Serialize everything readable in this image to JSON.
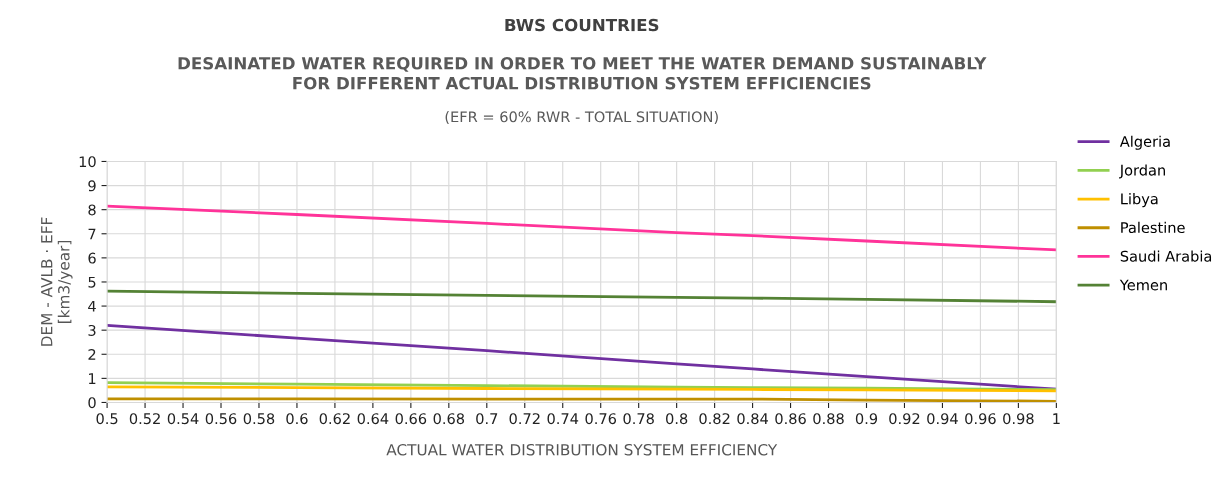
{
  "chart_data": {
    "type": "line",
    "title": "BWS COUNTRIES",
    "subtitle": "DESAINATED WATER REQUIRED IN ORDER TO MEET THE WATER DEMAND SUSTAINABLY\nFOR DIFFERENT ACTUAL DISTRIBUTION SYSTEM EFFICIENCIES",
    "annotations": [
      "(EFR = 60% RWR - TOTAL SITUATION)"
    ],
    "xlabel": "ACTUAL WATER DISTRIBUTION SYSTEM EFFICIENCY",
    "ylabel": "DEM - AVLB · EFF\n[km3/year]",
    "x": [
      0.5,
      0.6,
      0.7,
      0.8,
      0.84,
      0.9,
      1.0
    ],
    "series": [
      {
        "name": "Algeria",
        "color": "#7030a0",
        "values": [
          3.2,
          2.67,
          2.15,
          1.6,
          1.39,
          1.07,
          0.55
        ]
      },
      {
        "name": "Jordan",
        "color": "#92d050",
        "values": [
          0.82,
          0.76,
          0.7,
          0.64,
          0.62,
          0.59,
          0.53
        ]
      },
      {
        "name": "Libya",
        "color": "#ffc000",
        "values": [
          0.65,
          0.62,
          0.58,
          0.55,
          0.54,
          0.52,
          0.48
        ]
      },
      {
        "name": "Palestine",
        "color": "#bf8f00",
        "values": [
          0.15,
          0.15,
          0.14,
          0.14,
          0.14,
          0.1,
          0.05
        ]
      },
      {
        "name": "Saudi Arabia",
        "color": "#ff3399",
        "values": [
          8.15,
          7.8,
          7.43,
          7.05,
          6.92,
          6.7,
          6.33
        ]
      },
      {
        "name": "Yemen",
        "color": "#548235",
        "values": [
          4.62,
          4.53,
          4.44,
          4.36,
          4.33,
          4.28,
          4.18
        ]
      }
    ],
    "xlim": [
      0.5,
      1
    ],
    "xticks": [
      0.5,
      0.52,
      0.54,
      0.56,
      0.58,
      0.6,
      0.62,
      0.64,
      0.66,
      0.68,
      0.7,
      0.72,
      0.74,
      0.76,
      0.78,
      0.8,
      0.82,
      0.84,
      0.86,
      0.88,
      0.9,
      0.92,
      0.94,
      0.96,
      0.98,
      1
    ],
    "ylim": [
      0,
      10
    ],
    "yticks": [
      0,
      1,
      2,
      3,
      4,
      5,
      6,
      7,
      8,
      9,
      10
    ],
    "grid": true,
    "legend": "right"
  }
}
